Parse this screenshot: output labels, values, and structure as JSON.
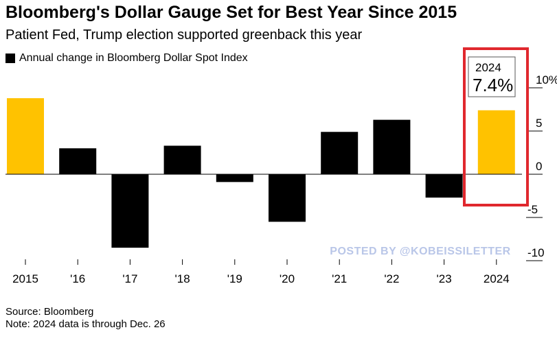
{
  "header": {
    "title": "Bloomberg's Dollar Gauge Set for Best Year Since 2015",
    "subtitle": "Patient Fed, Trump election supported greenback this year"
  },
  "legend": {
    "label": "Annual change in Bloomberg Dollar Spot Index"
  },
  "footer": {
    "source": "Source: Bloomberg",
    "note": "Note: 2024 data is through Dec. 26"
  },
  "watermark": "POSTED BY @KOBEISSILETTER",
  "colors": {
    "highlight": "#FFC200",
    "bar": "#000000",
    "callout_border": "#E0282E",
    "watermark": "#B9C6E8",
    "gridline": "#CCCCCC"
  },
  "chart_data": {
    "type": "bar",
    "title": "Bloomberg's Dollar Gauge Set for Best Year Since 2015",
    "ylabel": "Annual change in Bloomberg Dollar Spot Index",
    "categories": [
      "2015",
      "'16",
      "'17",
      "'18",
      "'19",
      "'20",
      "'21",
      "'22",
      "'23",
      "2024"
    ],
    "values": [
      8.8,
      3.0,
      -8.5,
      3.3,
      -0.9,
      -5.5,
      4.9,
      6.3,
      -2.7,
      7.4
    ],
    "highlight": [
      true,
      false,
      false,
      false,
      false,
      false,
      false,
      false,
      false,
      true
    ],
    "ylim": [
      -10.5,
      10.5
    ],
    "yticks": [
      10,
      5,
      0,
      -5,
      -10
    ],
    "ytick_labels": [
      "10%",
      "5",
      "0",
      "-5",
      "-10"
    ],
    "callout": {
      "year": "2024",
      "value": "7.4%"
    }
  }
}
